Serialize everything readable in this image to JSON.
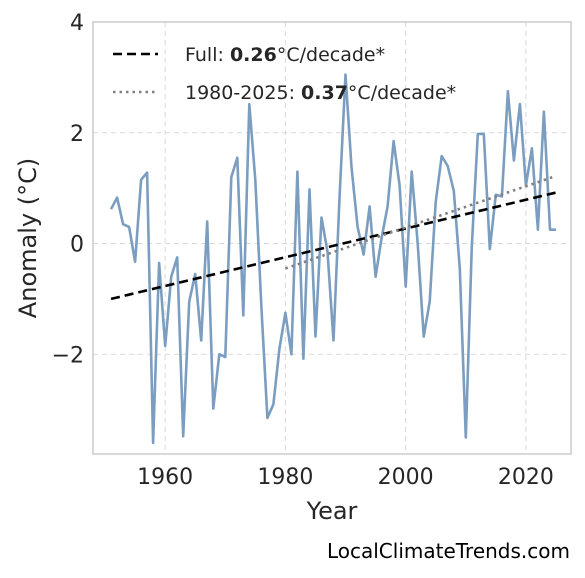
{
  "credit": "LocalClimateTrends.com",
  "chart_data": {
    "type": "line",
    "title": "",
    "xlabel": "Year",
    "ylabel": "Anomaly (°C)",
    "xlim": [
      1948,
      2027.5
    ],
    "ylim": [
      -3.8,
      4.0
    ],
    "x_ticks": [
      1960,
      1980,
      2000,
      2020
    ],
    "y_ticks": [
      4,
      2,
      0,
      -2
    ],
    "y_tick_labels": [
      "4",
      "2",
      "0",
      "−2"
    ],
    "grid": true,
    "legend_placement": "top-left",
    "colors": {
      "series": "#7b9ec0",
      "full_trend": "#000000",
      "recent_trend": "#808080",
      "grid": "#d9d9d9",
      "frame": "#cccccc"
    },
    "series": [
      {
        "x": [
          1951,
          1952,
          1953,
          1954,
          1955,
          1956,
          1957,
          1958,
          1959,
          1960,
          1961,
          1962,
          1963,
          1964,
          1965,
          1966,
          1967,
          1968,
          1969,
          1970,
          1971,
          1972,
          1973,
          1974,
          1975,
          1976,
          1977,
          1978,
          1979,
          1980,
          1981,
          1982,
          1983,
          1984,
          1985,
          1986,
          1987,
          1988,
          1989,
          1990,
          1991,
          1992,
          1993,
          1994,
          1995,
          1996,
          1997,
          1998,
          1999,
          2000,
          2001,
          2002,
          2003,
          2004,
          2005,
          2006,
          2007,
          2008,
          2009,
          2010,
          2011,
          2012,
          2013,
          2014,
          2015,
          2016,
          2017,
          2018,
          2019,
          2020,
          2021,
          2022,
          2023,
          2024,
          2025
        ],
        "values": [
          0.62,
          0.83,
          0.35,
          0.3,
          -0.33,
          1.15,
          1.28,
          -3.6,
          -0.35,
          -1.85,
          -0.6,
          -0.25,
          -3.48,
          -1.05,
          -0.55,
          -1.75,
          0.4,
          -2.98,
          -2.0,
          -2.05,
          1.2,
          1.55,
          -1.3,
          2.52,
          1.15,
          -1.15,
          -3.15,
          -2.9,
          -1.9,
          -1.25,
          -2.0,
          1.3,
          -2.08,
          0.98,
          -1.68,
          0.47,
          -0.15,
          -1.75,
          0.82,
          3.05,
          1.38,
          0.3,
          -0.2,
          0.67,
          -0.6,
          0.1,
          0.67,
          1.85,
          1.05,
          -0.78,
          1.3,
          0.0,
          -1.68,
          -1.05,
          0.75,
          1.58,
          1.4,
          0.95,
          -0.45,
          -3.5,
          -0.05,
          1.98,
          1.98,
          -0.1,
          0.88,
          0.85,
          2.75,
          1.5,
          2.52,
          1.05,
          1.72,
          0.25,
          2.38,
          0.25,
          0.25
        ]
      }
    ],
    "trends": [
      {
        "name": "Full",
        "rate": "0.26",
        "unit": "°C/decade*",
        "style": "dashed",
        "x": [
          1951,
          2025
        ],
        "y": [
          -1.0,
          0.92
        ]
      },
      {
        "name": "1980-2025",
        "rate": "0.37",
        "unit": "°C/decade*",
        "style": "dotted",
        "x": [
          1980,
          2025
        ],
        "y": [
          -0.45,
          1.22
        ]
      }
    ]
  }
}
